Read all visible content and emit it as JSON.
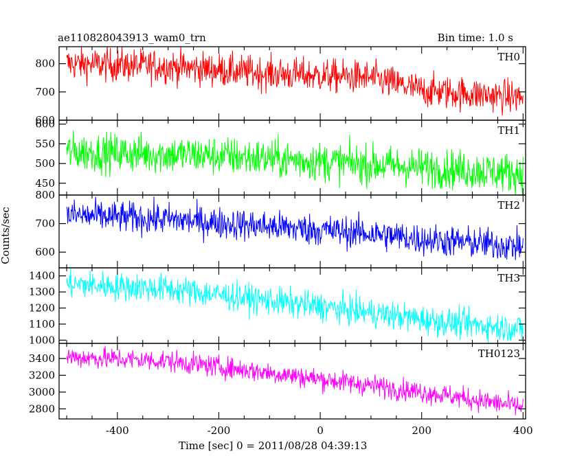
{
  "header": {
    "title": "ae110828043913_wam0_trn",
    "bin_time": "Bin time: 1.0 s"
  },
  "chart_data": {
    "type": "line",
    "x_range": [
      -515,
      405
    ],
    "x_ticks": [
      "-400",
      "-200",
      "0",
      "200",
      "400"
    ],
    "x_tick_values": [
      -400,
      -200,
      0,
      200,
      400
    ],
    "x_start": -500,
    "x_end": 400,
    "xlabel": "Time [sec] 0 = 2011/08/28 04:39:13",
    "ylabel": "Counts/sec",
    "grid": false,
    "panels": [
      {
        "name": "TH0",
        "color": "#ff0000",
        "ylim": [
          600,
          860
        ],
        "y_ticks": [
          "800",
          "700",
          "600"
        ],
        "y_tick_values": [
          800,
          700,
          600
        ],
        "trend": [
          [
            -500,
            800
          ],
          [
            -300,
            790
          ],
          [
            -100,
            765
          ],
          [
            100,
            750
          ],
          [
            200,
            705
          ],
          [
            400,
            680
          ]
        ],
        "noise": 30
      },
      {
        "name": "TH1",
        "color": "#00ff00",
        "ylim": [
          420,
          610
        ],
        "y_ticks": [
          "600",
          "550",
          "500",
          "450"
        ],
        "y_tick_values": [
          600,
          550,
          500,
          450
        ],
        "trend": [
          [
            -500,
            530
          ],
          [
            -200,
            520
          ],
          [
            0,
            505
          ],
          [
            200,
            490
          ],
          [
            400,
            475
          ]
        ],
        "noise": 25
      },
      {
        "name": "TH2",
        "color": "#0000ff",
        "ylim": [
          545,
          800
        ],
        "y_ticks": [
          "800",
          "700",
          "600"
        ],
        "y_tick_values": [
          800,
          700,
          600
        ],
        "trend": [
          [
            -500,
            730
          ],
          [
            -300,
            715
          ],
          [
            -100,
            690
          ],
          [
            100,
            665
          ],
          [
            200,
            645
          ],
          [
            400,
            620
          ]
        ],
        "noise": 28
      },
      {
        "name": "TH3",
        "color": "#00ffff",
        "ylim": [
          980,
          1450
        ],
        "y_ticks": [
          "1400",
          "1300",
          "1200",
          "1100",
          "1000"
        ],
        "y_tick_values": [
          1400,
          1300,
          1200,
          1100,
          1000
        ],
        "trend": [
          [
            -500,
            1350
          ],
          [
            -300,
            1320
          ],
          [
            -100,
            1245
          ],
          [
            100,
            1170
          ],
          [
            250,
            1110
          ],
          [
            400,
            1070
          ]
        ],
        "noise": 45
      },
      {
        "name": "TH0123",
        "color": "#ff00ff",
        "ylim": [
          2680,
          3580
        ],
        "y_ticks": [
          "3400",
          "3200",
          "3000",
          "2800"
        ],
        "y_tick_values": [
          3400,
          3200,
          3000,
          2800
        ],
        "trend": [
          [
            -500,
            3420
          ],
          [
            -300,
            3370
          ],
          [
            -100,
            3230
          ],
          [
            100,
            3080
          ],
          [
            250,
            2960
          ],
          [
            400,
            2820
          ]
        ],
        "noise": 65
      }
    ]
  }
}
